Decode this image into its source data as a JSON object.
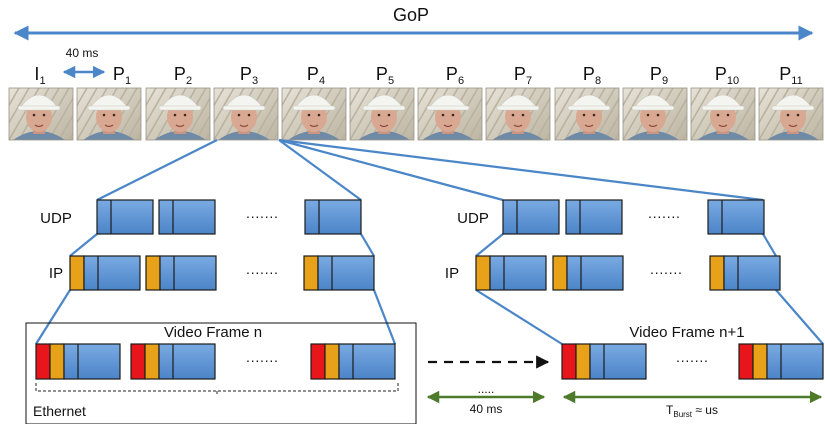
{
  "gop": {
    "label": "GoP"
  },
  "interval": {
    "label": "40 ms"
  },
  "frames": [
    {
      "letter": "I",
      "index": "1"
    },
    {
      "letter": "P",
      "index": "1"
    },
    {
      "letter": "P",
      "index": "2"
    },
    {
      "letter": "P",
      "index": "3"
    },
    {
      "letter": "P",
      "index": "4"
    },
    {
      "letter": "P",
      "index": "5"
    },
    {
      "letter": "P",
      "index": "6"
    },
    {
      "letter": "P",
      "index": "7"
    },
    {
      "letter": "P",
      "index": "8"
    },
    {
      "letter": "P",
      "index": "9"
    },
    {
      "letter": "P",
      "index": "10"
    },
    {
      "letter": "P",
      "index": "11"
    }
  ],
  "layers": {
    "udp": "UDP",
    "ip": "IP",
    "ethernet": "Ethernet"
  },
  "ellipsis": "·······",
  "video_frame_n": "Video Frame n",
  "video_frame_n1": "Video Frame n+1",
  "gap": {
    "dots": ".....",
    "label": "40 ms"
  },
  "burst": {
    "symbol": "T",
    "subscript": "Burst",
    "suffix": " ≈ us"
  },
  "colors": {
    "packet_blue": "#5a8fd0",
    "udp_blue": "#3f7cc9",
    "ip_header": "#e8a21a",
    "eth_header": "#e8161b",
    "arrow_blue": "#4a86c8",
    "green": "#4e7a2b",
    "stroke": "#1c1c1c"
  }
}
